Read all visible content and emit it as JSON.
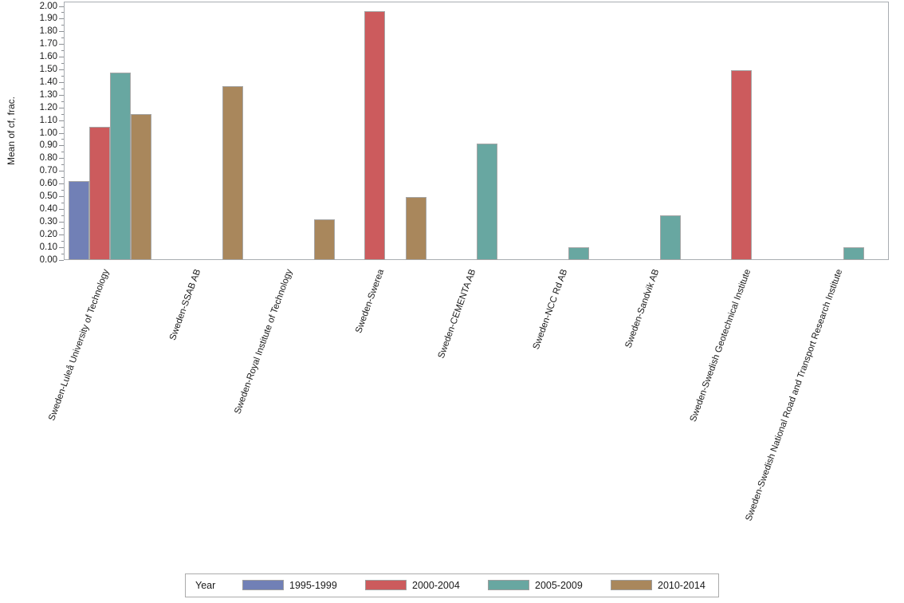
{
  "figure": {
    "background_color": "#FFFFFF",
    "axis_line_color": "#A9ADB2",
    "bar_outline_color": "#A6A6A6",
    "text_color": "#1A1A1A"
  },
  "chart_data": {
    "type": "bar",
    "title": "",
    "xlabel": "",
    "ylabel": "Mean of cf, frac.",
    "ylim": [
      0.0,
      2.0
    ],
    "ytick_major_step": 0.1,
    "ytick_minor_step": 0.05,
    "grid": false,
    "legend_position": "bottom",
    "legend_title": "Year",
    "categories": [
      "Sweden-Luleå University of Technology",
      "Sweden-SSAB AB",
      "Sweden-Royal Institute of Technology",
      "Sweden-Swerea",
      "Sweden-CEMENTA AB",
      "Sweden-NCC Rd AB",
      "Sweden-Sandvik AB",
      "Sweden-Swedish Geotechnical Institute",
      "Sweden-Swedish National Road and Transport Research Institute"
    ],
    "series": [
      {
        "name": "1995-1999",
        "color": "#7180B6",
        "values": [
          0.62,
          null,
          null,
          null,
          null,
          null,
          null,
          null,
          null
        ]
      },
      {
        "name": "2000-2004",
        "color": "#CC5B5D",
        "values": [
          1.05,
          null,
          null,
          1.96,
          null,
          null,
          null,
          1.5,
          null
        ]
      },
      {
        "name": "2005-2009",
        "color": "#68A7A1",
        "values": [
          1.48,
          null,
          null,
          null,
          0.92,
          0.1,
          0.35,
          null,
          0.1
        ]
      },
      {
        "name": "2010-2014",
        "color": "#A9875C",
        "values": [
          1.15,
          1.37,
          0.32,
          0.5,
          null,
          null,
          null,
          null,
          null
        ]
      }
    ]
  }
}
